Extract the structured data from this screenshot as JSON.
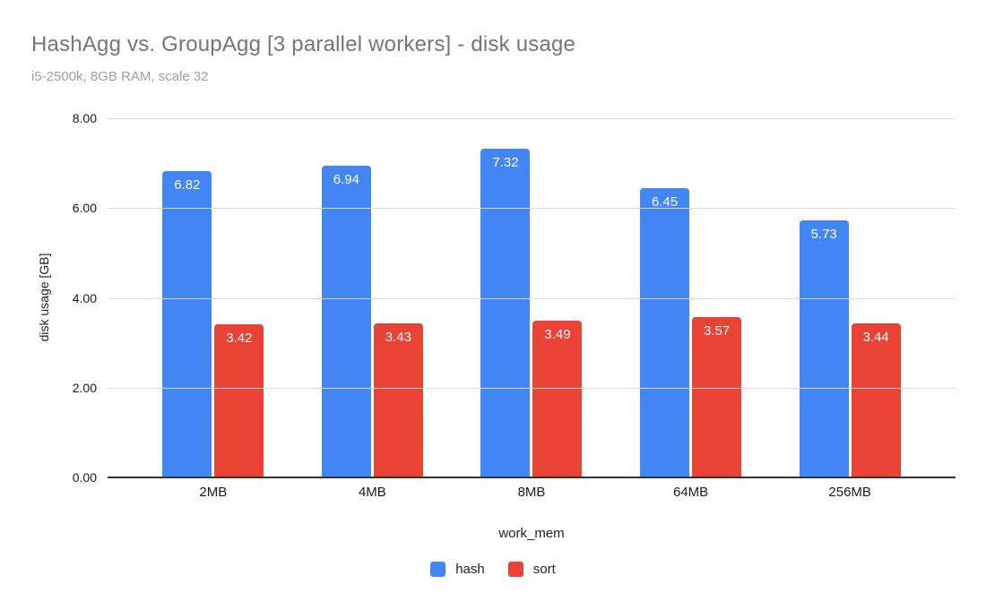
{
  "header": {
    "title": "HashAgg vs. GroupAgg [3 parallel workers] - disk usage",
    "subtitle": "i5-2500k, 8GB RAM, scale 32"
  },
  "chart_data": {
    "type": "bar",
    "title": "HashAgg vs. GroupAgg [3 parallel workers] - disk usage",
    "subtitle": "i5-2500k, 8GB RAM, scale 32",
    "xlabel": "work_mem",
    "ylabel": "disk usage [GB]",
    "categories": [
      "2MB",
      "4MB",
      "8MB",
      "64MB",
      "256MB"
    ],
    "series": [
      {
        "name": "hash",
        "color": "#4285F4",
        "values": [
          6.82,
          6.94,
          7.32,
          6.45,
          5.73
        ]
      },
      {
        "name": "sort",
        "color": "#EA4335",
        "values": [
          3.42,
          3.43,
          3.49,
          3.57,
          3.44
        ]
      }
    ],
    "ylim": [
      0,
      8
    ],
    "yticks": [
      {
        "v": 8,
        "label": "8.00"
      },
      {
        "v": 6,
        "label": "6.00"
      },
      {
        "v": 4,
        "label": "4.00"
      },
      {
        "v": 2,
        "label": "2.00"
      },
      {
        "v": 0,
        "label": "0.00"
      }
    ],
    "grid": true,
    "value_labels": true,
    "legend_position": "bottom"
  },
  "colors": {
    "grid": "#d9d9d9",
    "axis_line": "#333333",
    "title_text": "#757575",
    "subtitle_text": "#9e9e9e",
    "tick_text": "#1a1a1a",
    "value_label_text": "#ffffff",
    "background": "#ffffff"
  }
}
